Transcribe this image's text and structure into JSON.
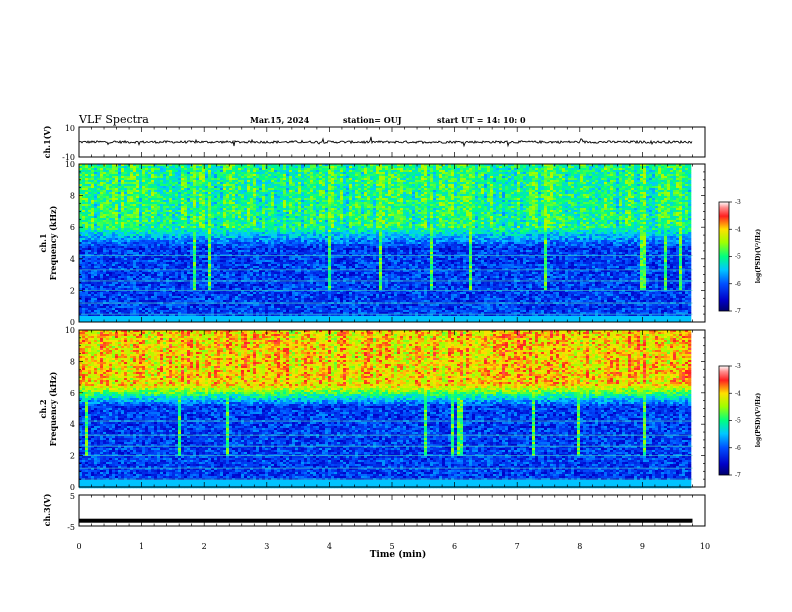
{
  "header": {
    "title": "VLF Spectra",
    "date": "Mar.15, 2024",
    "station": "station= OUJ",
    "start": "start  UT =   14: 10: 0"
  },
  "chart_data": [
    {
      "type": "line",
      "name": "ch1-waveform",
      "ylabel": "ch.1(V)",
      "ylim": [
        -10,
        10
      ],
      "y_ticks": [
        "10",
        "-10"
      ],
      "baseline": 0,
      "description_level": "noisy waveform near 0 V"
    },
    {
      "type": "heatmap",
      "name": "ch1-spectrogram",
      "ylabel_top": "ch.1",
      "ylabel": "Frequency  (kHz)",
      "ylim": [
        0,
        10
      ],
      "y_ticks": [
        "0",
        "2",
        "4",
        "6",
        "8",
        "10"
      ],
      "xlim": [
        0,
        10
      ],
      "data_end_min": 9.8,
      "colorbar": {
        "label": "log(PSD)(V²/Hz)",
        "range": [
          -7,
          -3
        ],
        "ticks": [
          "-3",
          "-4",
          "-5",
          "-6",
          "-7"
        ]
      },
      "bands_kHz": {
        "dark_low": [
          0.4,
          4.5
        ],
        "transition": [
          4.5,
          6.0
        ],
        "upper_level_log": -5.0
      }
    },
    {
      "type": "heatmap",
      "name": "ch2-spectrogram",
      "ylabel_top": "ch.2",
      "ylabel": "Frequency  (kHz)",
      "ylim": [
        0,
        10
      ],
      "y_ticks": [
        "0",
        "2",
        "4",
        "6",
        "8",
        "10"
      ],
      "xlim": [
        0,
        10
      ],
      "data_end_min": 9.8,
      "colorbar": {
        "label": "log(PSD)(V²/Hz)",
        "range": [
          -7,
          -3
        ],
        "ticks": [
          "-3",
          "-4",
          "-5",
          "-6",
          "-7"
        ]
      },
      "bands_kHz": {
        "dark_low": [
          0.4,
          5.0
        ],
        "transition": [
          5.0,
          6.5
        ],
        "upper_level_log": -4.0
      }
    },
    {
      "type": "line",
      "name": "ch3-waveform",
      "ylabel": "ch.3(V)",
      "ylim": [
        -5,
        5
      ],
      "y_ticks": [
        "5",
        "-5"
      ],
      "level": -3.3
    }
  ],
  "xaxis": {
    "label": "Time  (min)",
    "ticks": [
      "0",
      "1",
      "2",
      "3",
      "4",
      "5",
      "6",
      "7",
      "8",
      "9",
      "10"
    ]
  }
}
